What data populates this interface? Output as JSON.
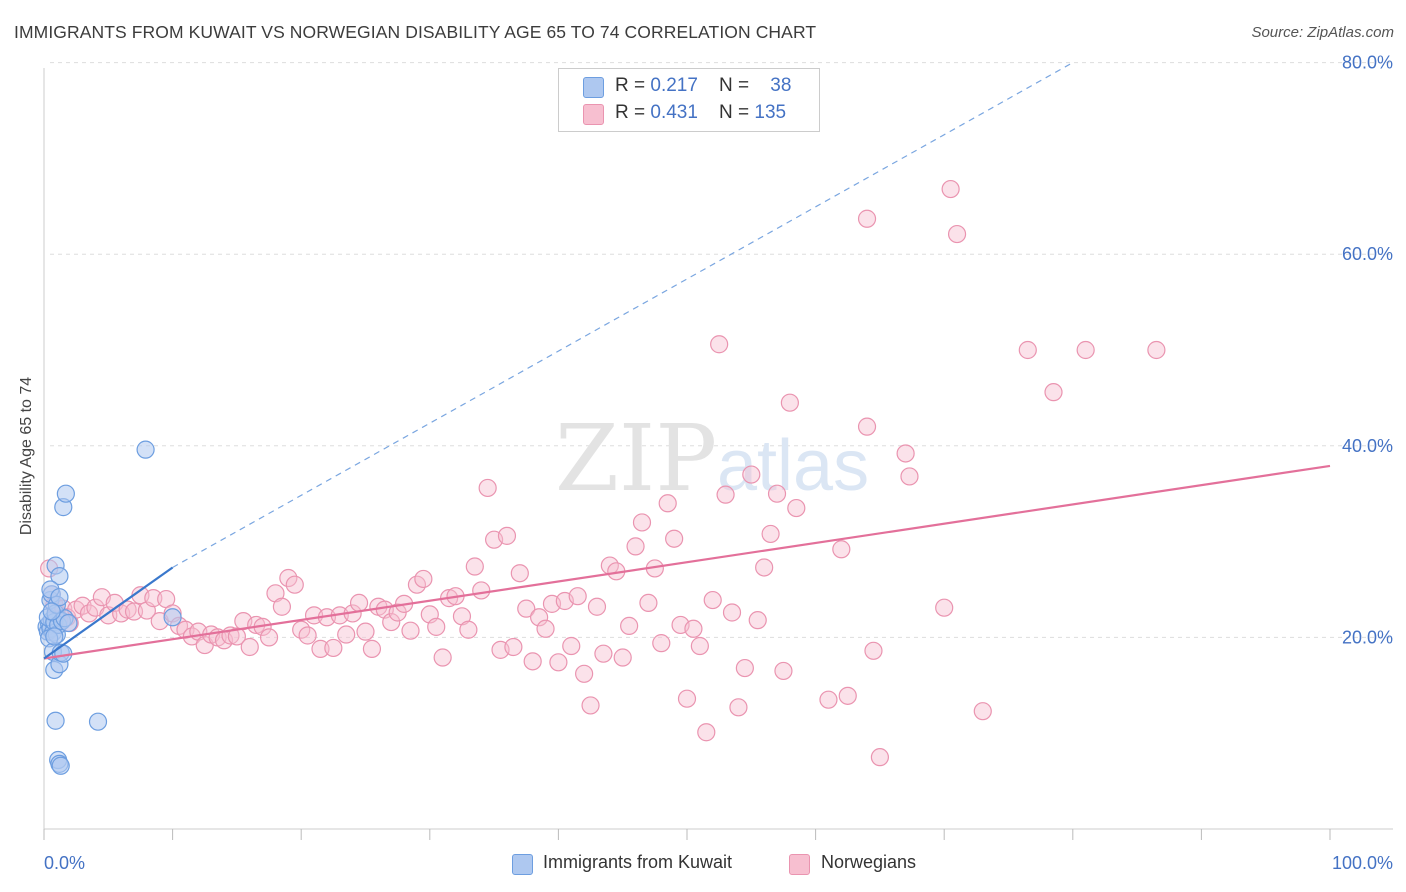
{
  "header": {
    "title": "IMMIGRANTS FROM KUWAIT VS NORWEGIAN DISABILITY AGE 65 TO 74 CORRELATION CHART",
    "source": "Source: ZipAtlas.com"
  },
  "watermark": {
    "zip": "ZIP",
    "atlas": "atlas"
  },
  "legend": {
    "rows": [
      {
        "r_label": "R = ",
        "r_value": "0.217",
        "n_label": "N = ",
        "n_value": "38"
      },
      {
        "r_label": "R = ",
        "r_value": "0.431",
        "n_label": "N = ",
        "n_value": "135"
      }
    ]
  },
  "bottom_legend": {
    "series1": "Immigrants from Kuwait",
    "series2": "Norwegians"
  },
  "colors": {
    "blue_fill": "#aec8f0",
    "blue_stroke": "#6d9ee0",
    "blue_line": "#3a78cc",
    "pink_fill": "#f7bfd0",
    "pink_stroke": "#ea94b0",
    "pink_line": "#e3709a",
    "axis_text": "#4472c4",
    "grid": "#dddddd"
  },
  "chart_data": {
    "type": "scatter",
    "title": "IMMIGRANTS FROM KUWAIT VS NORWEGIAN DISABILITY AGE 65 TO 74 CORRELATION CHART",
    "xlabel": "",
    "ylabel": "Disability Age 65 to 74",
    "xlim": [
      0,
      100
    ],
    "ylim": [
      0,
      82
    ],
    "y_ticks": [
      20,
      40,
      60,
      80
    ],
    "y_tick_labels": [
      "20.0%",
      "40.0%",
      "60.0%",
      "80.0%"
    ],
    "x_tick_labels": [
      "0.0%",
      "100.0%"
    ],
    "grid": true,
    "legend_position": "top-center",
    "series": [
      {
        "name": "Immigrants from Kuwait",
        "r": 0.217,
        "n": 38,
        "trend": {
          "x": [
            0,
            10
          ],
          "y": [
            17.8,
            27.3
          ],
          "extended_to": [
            80,
            80
          ]
        },
        "points": [
          [
            0.2,
            21.1
          ],
          [
            0.3,
            20.6
          ],
          [
            0.4,
            21.4
          ],
          [
            0.5,
            20.9
          ],
          [
            0.6,
            21.8
          ],
          [
            0.7,
            20.5
          ],
          [
            0.3,
            22.1
          ],
          [
            0.5,
            23.9
          ],
          [
            0.6,
            24.5
          ],
          [
            0.8,
            21.6
          ],
          [
            0.9,
            22.5
          ],
          [
            1.0,
            20.3
          ],
          [
            1.1,
            21.3
          ],
          [
            0.4,
            19.9
          ],
          [
            0.7,
            18.5
          ],
          [
            0.8,
            16.6
          ],
          [
            1.2,
            17.2
          ],
          [
            1.3,
            18.4
          ],
          [
            1.5,
            18.3
          ],
          [
            0.9,
            27.5
          ],
          [
            1.2,
            26.4
          ],
          [
            1.4,
            21.7
          ],
          [
            1.6,
            22.0
          ],
          [
            1.9,
            21.5
          ],
          [
            1.5,
            33.6
          ],
          [
            1.7,
            35.0
          ],
          [
            0.5,
            25.0
          ],
          [
            1.0,
            23.4
          ],
          [
            1.2,
            24.2
          ],
          [
            0.9,
            11.3
          ],
          [
            1.1,
            7.2
          ],
          [
            1.2,
            6.8
          ],
          [
            1.3,
            6.6
          ],
          [
            4.2,
            11.2
          ],
          [
            7.9,
            39.6
          ],
          [
            10.0,
            22.1
          ],
          [
            0.6,
            22.7
          ],
          [
            0.8,
            20.1
          ]
        ]
      },
      {
        "name": "Norwegians",
        "r": 0.431,
        "n": 135,
        "trend": {
          "x": [
            0,
            100
          ],
          "y": [
            17.8,
            37.9
          ]
        },
        "points": [
          [
            0.4,
            27.2
          ],
          [
            0.6,
            24.5
          ],
          [
            0.8,
            23.4
          ],
          [
            1.0,
            22.6
          ],
          [
            1.2,
            21.9
          ],
          [
            1.5,
            23.0
          ],
          [
            1.8,
            22.1
          ],
          [
            2.0,
            21.5
          ],
          [
            2.5,
            22.9
          ],
          [
            3.0,
            23.3
          ],
          [
            3.5,
            22.5
          ],
          [
            4.0,
            23.1
          ],
          [
            4.5,
            24.2
          ],
          [
            5.0,
            22.3
          ],
          [
            5.5,
            23.6
          ],
          [
            6.0,
            22.5
          ],
          [
            6.5,
            22.9
          ],
          [
            7.0,
            22.7
          ],
          [
            7.5,
            24.4
          ],
          [
            8.0,
            22.8
          ],
          [
            8.5,
            24.1
          ],
          [
            9.0,
            21.7
          ],
          [
            9.5,
            24.0
          ],
          [
            10.0,
            22.5
          ],
          [
            10.5,
            21.2
          ],
          [
            11.0,
            20.8
          ],
          [
            11.5,
            20.1
          ],
          [
            12.0,
            20.6
          ],
          [
            12.5,
            19.2
          ],
          [
            13.0,
            20.3
          ],
          [
            13.5,
            20.0
          ],
          [
            14.0,
            19.7
          ],
          [
            14.5,
            20.2
          ],
          [
            15.0,
            20.1
          ],
          [
            15.5,
            21.7
          ],
          [
            16.0,
            19.0
          ],
          [
            16.5,
            21.3
          ],
          [
            17.0,
            21.1
          ],
          [
            17.5,
            20.0
          ],
          [
            18.0,
            24.6
          ],
          [
            18.5,
            23.2
          ],
          [
            19.0,
            26.2
          ],
          [
            19.5,
            25.5
          ],
          [
            20.0,
            20.8
          ],
          [
            20.5,
            20.2
          ],
          [
            21.0,
            22.3
          ],
          [
            21.5,
            18.8
          ],
          [
            22.0,
            22.1
          ],
          [
            22.5,
            18.9
          ],
          [
            23.0,
            22.3
          ],
          [
            23.5,
            20.3
          ],
          [
            24.0,
            22.5
          ],
          [
            24.5,
            23.6
          ],
          [
            25.0,
            20.6
          ],
          [
            25.5,
            18.8
          ],
          [
            26.0,
            23.2
          ],
          [
            26.5,
            22.9
          ],
          [
            27.0,
            21.6
          ],
          [
            27.5,
            22.6
          ],
          [
            28.0,
            23.5
          ],
          [
            28.5,
            20.7
          ],
          [
            29.0,
            25.5
          ],
          [
            29.5,
            26.1
          ],
          [
            30.0,
            22.4
          ],
          [
            30.5,
            21.1
          ],
          [
            31.0,
            17.9
          ],
          [
            31.5,
            24.1
          ],
          [
            32.0,
            24.3
          ],
          [
            32.5,
            22.2
          ],
          [
            33.0,
            20.8
          ],
          [
            33.5,
            27.4
          ],
          [
            34.0,
            24.9
          ],
          [
            34.5,
            35.6
          ],
          [
            35.0,
            30.2
          ],
          [
            35.5,
            18.7
          ],
          [
            36.0,
            30.6
          ],
          [
            36.5,
            19.0
          ],
          [
            37.0,
            26.7
          ],
          [
            37.5,
            23.0
          ],
          [
            38.0,
            17.5
          ],
          [
            38.5,
            22.1
          ],
          [
            39.0,
            20.9
          ],
          [
            39.5,
            23.5
          ],
          [
            40.0,
            17.4
          ],
          [
            40.5,
            23.8
          ],
          [
            41.0,
            19.1
          ],
          [
            41.5,
            24.3
          ],
          [
            42.0,
            16.2
          ],
          [
            42.5,
            12.9
          ],
          [
            43.0,
            23.2
          ],
          [
            43.5,
            18.3
          ],
          [
            44.0,
            27.5
          ],
          [
            44.5,
            26.9
          ],
          [
            45.0,
            17.9
          ],
          [
            45.5,
            21.2
          ],
          [
            46.0,
            29.5
          ],
          [
            46.5,
            32.0
          ],
          [
            47.0,
            23.6
          ],
          [
            47.5,
            27.2
          ],
          [
            48.0,
            19.4
          ],
          [
            48.5,
            34.0
          ],
          [
            49.0,
            30.3
          ],
          [
            49.5,
            21.3
          ],
          [
            50.0,
            13.6
          ],
          [
            50.5,
            20.9
          ],
          [
            51.0,
            19.1
          ],
          [
            51.5,
            10.1
          ],
          [
            52.0,
            23.9
          ],
          [
            52.5,
            50.6
          ],
          [
            53.0,
            34.9
          ],
          [
            53.5,
            22.6
          ],
          [
            54.0,
            12.7
          ],
          [
            54.5,
            16.8
          ],
          [
            55.0,
            37.0
          ],
          [
            55.5,
            21.8
          ],
          [
            56.0,
            27.3
          ],
          [
            56.5,
            30.8
          ],
          [
            57.0,
            35.0
          ],
          [
            57.5,
            16.5
          ],
          [
            58.0,
            44.5
          ],
          [
            58.5,
            33.5
          ],
          [
            61.0,
            13.5
          ],
          [
            62.0,
            29.2
          ],
          [
            64.0,
            42.0
          ],
          [
            64.5,
            18.6
          ],
          [
            65.0,
            7.5
          ],
          [
            67.0,
            39.2
          ],
          [
            67.3,
            36.8
          ],
          [
            70.0,
            23.1
          ],
          [
            70.5,
            66.8
          ],
          [
            71.0,
            62.1
          ],
          [
            64.0,
            63.7
          ],
          [
            73.0,
            12.3
          ],
          [
            76.5,
            50.0
          ],
          [
            78.5,
            45.6
          ],
          [
            81.0,
            50.0
          ],
          [
            86.5,
            50.0
          ],
          [
            62.5,
            13.9
          ]
        ]
      }
    ]
  }
}
